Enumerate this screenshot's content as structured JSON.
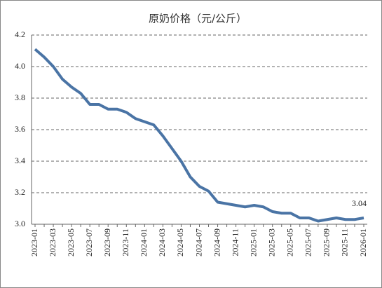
{
  "chart_data": {
    "type": "line",
    "title": "原奶价格（元/公斤）",
    "categories": [
      "2023-01",
      null,
      "2023-03",
      null,
      "2023-05",
      null,
      "2023-07",
      null,
      "2023-09",
      null,
      "2023-11",
      null,
      "2024-01",
      null,
      "2024-03",
      null,
      "2024-05",
      null,
      "2024-07",
      null,
      "2024-09",
      null,
      "2024-11",
      null,
      "2025-01",
      null,
      "2025-03",
      null,
      "2025-05",
      null,
      "2025-07",
      null,
      "2025-09",
      null,
      "2025-11",
      null,
      "2026-01"
    ],
    "series": [
      {
        "color": "#4a74a5",
        "values": [
          4.11,
          4.06,
          4.0,
          3.92,
          3.87,
          3.83,
          3.76,
          3.76,
          3.73,
          3.73,
          3.71,
          3.67,
          3.65,
          3.63,
          3.56,
          3.48,
          3.4,
          3.3,
          3.24,
          3.21,
          3.14,
          3.13,
          3.12,
          3.11,
          3.12,
          3.11,
          3.08,
          3.07,
          3.07,
          3.04,
          3.04,
          3.02,
          3.03,
          3.04,
          3.03,
          3.03,
          3.04
        ]
      }
    ],
    "ylim": [
      3,
      4.2
    ],
    "yticks": [
      {
        "value": 3,
        "label": "3.0"
      },
      3.2,
      3.4,
      3.6,
      3.8,
      {
        "value": 4,
        "label": "4.0"
      },
      4.2
    ],
    "grid": true
  }
}
